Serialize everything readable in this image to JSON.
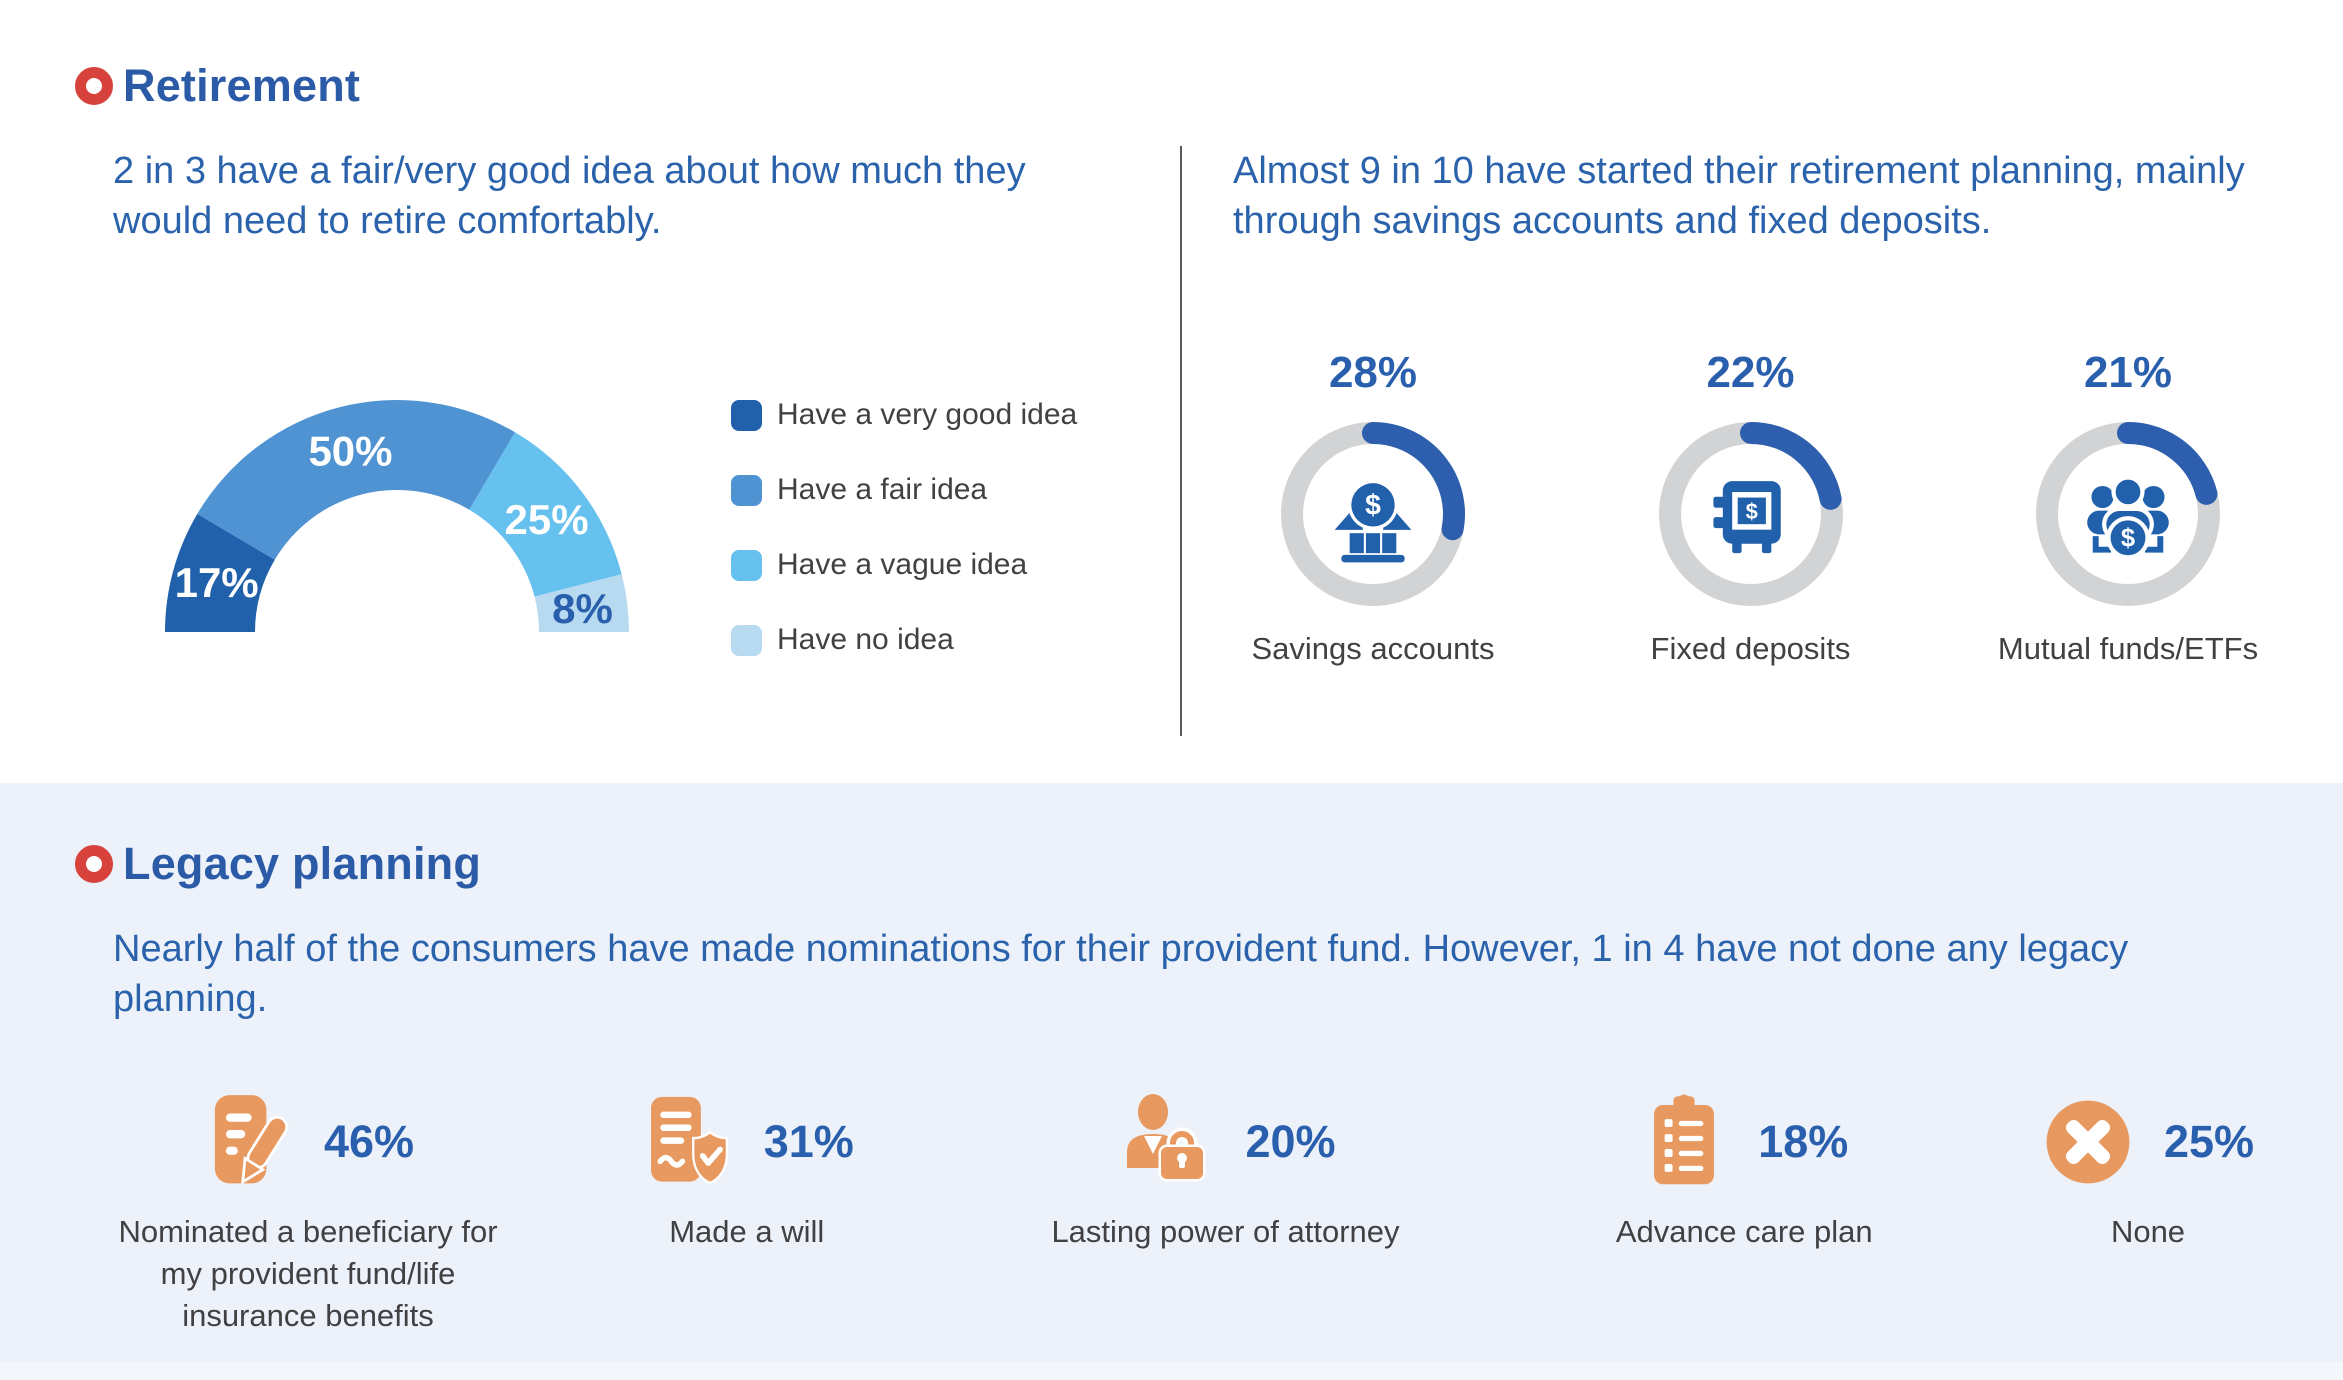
{
  "glyphs": {
    "dollar": "$"
  },
  "palette": {
    "accent_red": "#d8423c",
    "heading_blue": "#2b5aa7",
    "statement_blue": "#2a62ab",
    "percent_blue": "#2a5fae",
    "label_gray": "#414042",
    "icon_blue": "#2160ab",
    "icon_orange": "#e8995f",
    "section_bg": "#edf2fa",
    "divider_gray": "#58595b"
  },
  "retirement": {
    "heading": "Retirement",
    "left_statement": "2 in 3 have a fair/very good idea about how much they would need to retire comfortably.",
    "right_statement": "Almost 9 in 10 have started their retirement planning, mainly through savings accounts and fixed deposits."
  },
  "legacy": {
    "heading": "Legacy planning",
    "statement": "Nearly half of the consumers have made nominations for their provident fund. However, 1 in 4 have not done any legacy planning.",
    "items": [
      {
        "value": "46%",
        "label": "Nominated a beneficiary for my provident fund/life insurance benefits",
        "icon": "document-pencil"
      },
      {
        "value": "31%",
        "label": "Made a will",
        "icon": "document-shield"
      },
      {
        "value": "20%",
        "label": "Lasting power of attorney",
        "icon": "attorney-person-briefcase"
      },
      {
        "value": "18%",
        "label": "Advance care plan",
        "icon": "advance-care-clipboard"
      },
      {
        "value": "25%",
        "label": "None",
        "icon": "x-circle"
      }
    ]
  },
  "chart_data": [
    {
      "type": "pie",
      "variant": "half-donut-gauge",
      "title": "2 in 3 have a fair/very good idea about how much they would need to retire comfortably.",
      "labels": [
        "Have a very good idea",
        "Have a fair idea",
        "Have a vague idea",
        "Have no idea"
      ],
      "values": [
        17,
        50,
        25,
        8
      ],
      "value_labels": [
        "17%",
        "50%",
        "25%",
        "8%"
      ],
      "colors": [
        "#2160ab",
        "#4f93d3",
        "#66c1ee",
        "#b7daf1"
      ],
      "label_colors": [
        "#ffffff",
        "#ffffff",
        "#ffffff",
        "#2a5fae"
      ],
      "legend_position": "right",
      "start_side": "left",
      "grid": false
    },
    {
      "type": "pie",
      "variant": "progress-rings",
      "title": "Almost 9 in 10 have started their retirement planning, mainly through savings accounts and fixed deposits.",
      "max": 100,
      "track_color": "#d2d3d5",
      "fill_color": "#2e5fae",
      "items": [
        {
          "label": "Savings accounts",
          "value": 28,
          "display": "28%",
          "icon": "bank"
        },
        {
          "label": "Fixed deposits",
          "value": 22,
          "display": "22%",
          "icon": "safe"
        },
        {
          "label": "Mutual funds/ETFs",
          "value": 21,
          "display": "21%",
          "icon": "people-fund"
        }
      ]
    }
  ]
}
